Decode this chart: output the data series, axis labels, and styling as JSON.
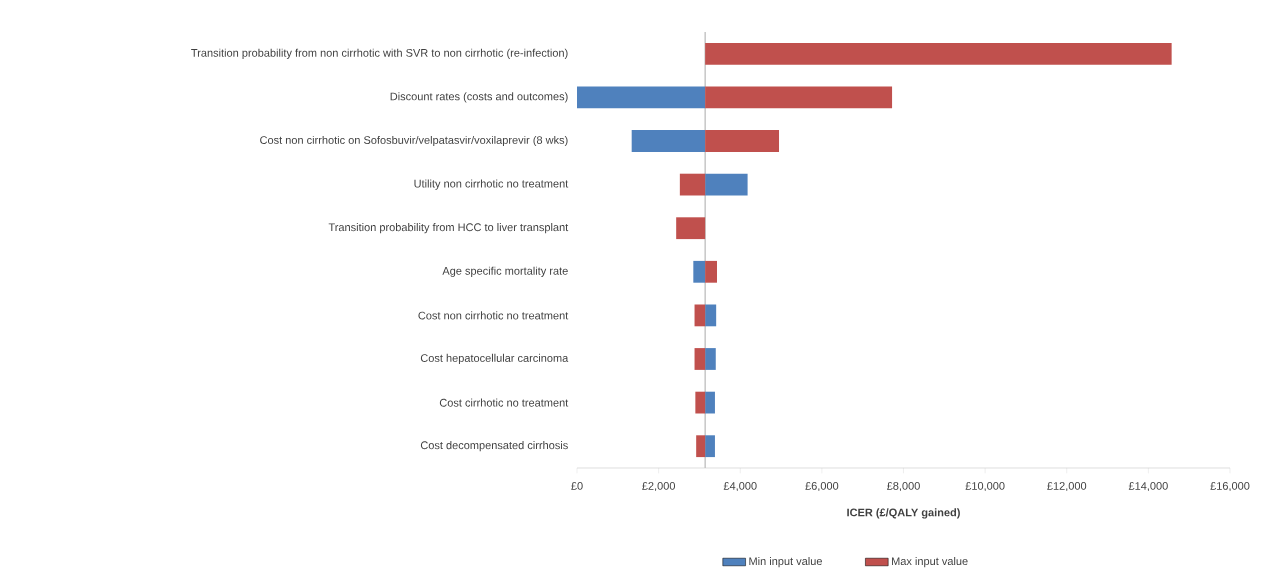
{
  "chart_data": {
    "type": "bar",
    "orientation": "horizontal",
    "xlabel": "ICER (£/QALY gained)",
    "categories": [
      "Transition probability from non cirrhotic with SVR to non cirrhotic (re-infection)",
      "Discount rates (costs and outcomes)",
      "Cost non cirrhotic on Sofosbuvir/velpatasvir/voxilaprevir (8 wks)",
      "Utility non cirrhotic no treatment",
      "Transition probability from HCC to liver transplant",
      "Age specific mortality rate",
      "Cost non cirrhotic no treatment",
      "Cost hepatocellular carcinoma",
      "Cost cirrhotic no treatment",
      "Cost decompensated cirrhosis"
    ],
    "series": [
      {
        "name": "Min input value",
        "color": "#4f81bd",
        "base": [
          null,
          3140,
          3140,
          3140,
          null,
          3140,
          3140,
          3140,
          3140,
          3140
        ],
        "values": [
          null,
          -3140,
          -1800,
          1040,
          null,
          -290,
          270,
          260,
          240,
          240
        ]
      },
      {
        "name": "Max input value",
        "color": "#c0504d",
        "base": [
          3140,
          3140,
          3140,
          3140,
          3140,
          3140,
          3140,
          3140,
          3140,
          3140
        ],
        "values": [
          11430,
          4580,
          1810,
          -620,
          -710,
          290,
          -260,
          -260,
          -240,
          -220
        ]
      }
    ],
    "xlim": [
      0,
      16000
    ],
    "xticks": [
      {
        "value": 0,
        "label": "£0"
      },
      {
        "value": 2000,
        "label": "£2,000"
      },
      {
        "value": 4000,
        "label": "£4,000"
      },
      {
        "value": 6000,
        "label": "£6,000"
      },
      {
        "value": 8000,
        "label": "£8,000"
      },
      {
        "value": 10000,
        "label": "£10,000"
      },
      {
        "value": 12000,
        "label": "£12,000"
      },
      {
        "value": 14000,
        "label": "£14,000"
      },
      {
        "value": 16000,
        "label": "£16,000"
      }
    ],
    "ref_lines": [
      {
        "axis": "x",
        "value": 3140,
        "color": "#bfbfbf"
      }
    ],
    "legend": "bottom"
  }
}
